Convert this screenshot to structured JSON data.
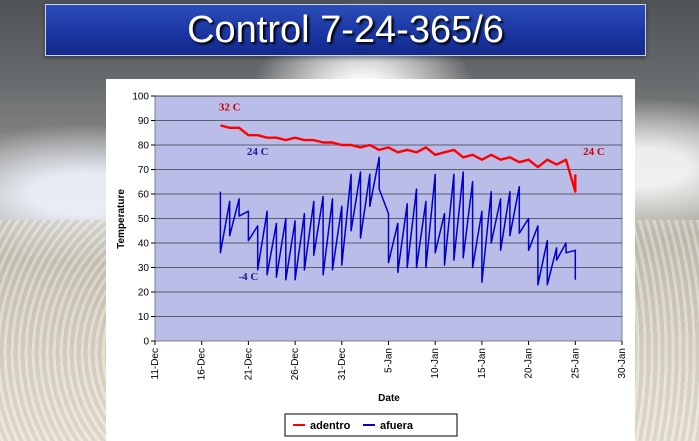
{
  "slide": {
    "title": "Control 7-24-365/6",
    "colors": {
      "title_bar": "#1b36a3",
      "title_text": "#ffffff",
      "plot_area": "#b9bde8"
    }
  },
  "chart_data": {
    "type": "line",
    "xlabel": "Date",
    "ylabel": "Temperature",
    "ylim": [
      0,
      100
    ],
    "yticks": [
      0,
      10,
      20,
      30,
      40,
      50,
      60,
      70,
      80,
      90,
      100
    ],
    "xlim": [
      "2004-12-11",
      "2005-01-30"
    ],
    "xtick_labels": [
      "11-Dec",
      "16-Dec",
      "21-Dec",
      "26-Dec",
      "31-Dec",
      "5-Jan",
      "10-Jan",
      "15-Jan",
      "20-Jan",
      "25-Jan",
      "30-Jan"
    ],
    "grid": "horizontal",
    "legend": "bottom",
    "series": [
      {
        "name": "adentro",
        "color": "#ff0000",
        "points": [
          [
            "2004-12-18",
            88
          ],
          [
            "2004-12-19",
            87
          ],
          [
            "2004-12-20",
            87
          ],
          [
            "2004-12-21",
            84
          ],
          [
            "2004-12-22",
            84
          ],
          [
            "2004-12-23",
            83
          ],
          [
            "2004-12-24",
            83
          ],
          [
            "2004-12-25",
            82
          ],
          [
            "2004-12-26",
            83
          ],
          [
            "2004-12-27",
            82
          ],
          [
            "2004-12-28",
            82
          ],
          [
            "2004-12-29",
            81
          ],
          [
            "2004-12-30",
            81
          ],
          [
            "2004-12-31",
            80
          ],
          [
            "2005-01-01",
            80
          ],
          [
            "2005-01-02",
            79
          ],
          [
            "2005-01-03",
            80
          ],
          [
            "2005-01-04",
            78
          ],
          [
            "2005-01-05",
            79
          ],
          [
            "2005-01-06",
            77
          ],
          [
            "2005-01-07",
            78
          ],
          [
            "2005-01-08",
            77
          ],
          [
            "2005-01-09",
            79
          ],
          [
            "2005-01-10",
            76
          ],
          [
            "2005-01-11",
            77
          ],
          [
            "2005-01-12",
            78
          ],
          [
            "2005-01-13",
            75
          ],
          [
            "2005-01-14",
            76
          ],
          [
            "2005-01-15",
            74
          ],
          [
            "2005-01-16",
            76
          ],
          [
            "2005-01-17",
            74
          ],
          [
            "2005-01-18",
            75
          ],
          [
            "2005-01-19",
            73
          ],
          [
            "2005-01-20",
            74
          ],
          [
            "2005-01-21",
            71
          ],
          [
            "2005-01-22",
            74
          ],
          [
            "2005-01-23",
            72
          ],
          [
            "2005-01-24",
            74
          ],
          [
            "2005-01-25",
            61
          ],
          [
            "2005-01-25",
            68
          ]
        ]
      },
      {
        "name": "afuera",
        "color": "#0000cc",
        "points": [
          [
            "2004-12-18",
            61
          ],
          [
            "2004-12-18",
            36
          ],
          [
            "2004-12-19",
            57
          ],
          [
            "2004-12-19",
            43
          ],
          [
            "2004-12-20",
            58
          ],
          [
            "2004-12-20",
            51
          ],
          [
            "2004-12-21",
            53
          ],
          [
            "2004-12-21",
            41
          ],
          [
            "2004-12-22",
            47
          ],
          [
            "2004-12-22",
            29
          ],
          [
            "2004-12-23",
            53
          ],
          [
            "2004-12-23",
            27
          ],
          [
            "2004-12-24",
            48
          ],
          [
            "2004-12-24",
            26
          ],
          [
            "2004-12-25",
            50
          ],
          [
            "2004-12-25",
            25
          ],
          [
            "2004-12-26",
            49
          ],
          [
            "2004-12-26",
            25
          ],
          [
            "2004-12-27",
            52
          ],
          [
            "2004-12-27",
            29
          ],
          [
            "2004-12-28",
            57
          ],
          [
            "2004-12-28",
            35
          ],
          [
            "2004-12-29",
            59
          ],
          [
            "2004-12-29",
            27
          ],
          [
            "2004-12-30",
            58
          ],
          [
            "2004-12-30",
            29
          ],
          [
            "2004-12-31",
            55
          ],
          [
            "2004-12-31",
            31
          ],
          [
            "2005-01-01",
            68
          ],
          [
            "2005-01-01",
            45
          ],
          [
            "2005-01-02",
            69
          ],
          [
            "2005-01-02",
            42
          ],
          [
            "2005-01-03",
            68
          ],
          [
            "2005-01-03",
            55
          ],
          [
            "2005-01-04",
            75
          ],
          [
            "2005-01-04",
            62
          ],
          [
            "2005-01-05",
            52
          ],
          [
            "2005-01-05",
            32
          ],
          [
            "2005-01-06",
            48
          ],
          [
            "2005-01-06",
            28
          ],
          [
            "2005-01-07",
            56
          ],
          [
            "2005-01-07",
            30
          ],
          [
            "2005-01-08",
            62
          ],
          [
            "2005-01-08",
            30
          ],
          [
            "2005-01-09",
            57
          ],
          [
            "2005-01-09",
            30
          ],
          [
            "2005-01-10",
            68
          ],
          [
            "2005-01-10",
            36
          ],
          [
            "2005-01-11",
            52
          ],
          [
            "2005-01-11",
            31
          ],
          [
            "2005-01-12",
            68
          ],
          [
            "2005-01-12",
            33
          ],
          [
            "2005-01-13",
            69
          ],
          [
            "2005-01-13",
            34
          ],
          [
            "2005-01-14",
            65
          ],
          [
            "2005-01-14",
            30
          ],
          [
            "2005-01-15",
            53
          ],
          [
            "2005-01-15",
            24
          ],
          [
            "2005-01-16",
            61
          ],
          [
            "2005-01-16",
            40
          ],
          [
            "2005-01-17",
            58
          ],
          [
            "2005-01-17",
            37
          ],
          [
            "2005-01-18",
            61
          ],
          [
            "2005-01-18",
            43
          ],
          [
            "2005-01-19",
            63
          ],
          [
            "2005-01-19",
            44
          ],
          [
            "2005-01-20",
            50
          ],
          [
            "2005-01-20",
            37
          ],
          [
            "2005-01-21",
            47
          ],
          [
            "2005-01-21",
            23
          ],
          [
            "2005-01-22",
            41
          ],
          [
            "2005-01-22",
            23
          ],
          [
            "2005-01-23",
            38
          ],
          [
            "2005-01-23",
            33
          ],
          [
            "2005-01-24",
            40
          ],
          [
            "2005-01-24",
            36
          ],
          [
            "2005-01-25",
            37
          ],
          [
            "2005-01-25",
            25
          ]
        ]
      }
    ],
    "annotations": [
      {
        "text": "32 C",
        "x": "2004-12-19",
        "y": 94,
        "color": "#cc0000"
      },
      {
        "text": "24 C",
        "x": "2004-12-22",
        "y": 76,
        "color": "#1a1aa0"
      },
      {
        "text": "-4 C",
        "x": "2004-12-21",
        "y": 25,
        "color": "#1a1aa0"
      },
      {
        "text": "24 C",
        "x": "2005-01-27",
        "y": 76,
        "color": "#cc0000"
      }
    ]
  }
}
